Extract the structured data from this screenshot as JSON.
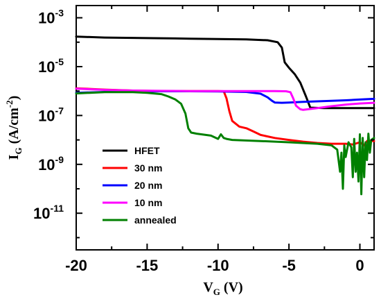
{
  "chart_data": {
    "type": "line",
    "title": "",
    "xlabel": {
      "main": "V",
      "sub": "G",
      "unit": " (V)"
    },
    "ylabel": {
      "main": "I",
      "sub": "G",
      "unit_open": " (A/cm",
      "unit_sup": "-2",
      "unit_close": ")"
    },
    "xlim": [
      -20,
      1
    ],
    "ylim_log10": [
      -12.5,
      -2.5
    ],
    "y_scale": "log",
    "x_ticks": [
      -20,
      -15,
      -10,
      -5,
      0
    ],
    "x_tick_labels": [
      "-20",
      "-15",
      "-10",
      "-5",
      "0"
    ],
    "y_ticks_exp": [
      -3,
      -5,
      -7,
      -9,
      -11
    ],
    "y_tick_base": "10",
    "y_tick_exps": [
      "-3",
      "-5",
      "-7",
      "-9",
      "-11"
    ],
    "legend_position": "lower-left",
    "series": [
      {
        "name": "HFET",
        "color": "#000000",
        "x": [
          -20,
          -18,
          -16,
          -14,
          -12,
          -10,
          -8,
          -6.5,
          -5.8,
          -5.5,
          -5.3,
          -5.0,
          -4.6,
          -4.2,
          -3.8,
          -3.5,
          -2.5,
          -1,
          0,
          1
        ],
        "y": [
          0.00017,
          0.000155,
          0.00015,
          0.000145,
          0.00014,
          0.000135,
          0.00013,
          0.00012,
          0.0001,
          6e-05,
          1.5e-05,
          9e-06,
          5e-06,
          2.2e-06,
          6e-07,
          2.1e-07,
          2e-07,
          2e-07,
          2e-07,
          2e-07
        ]
      },
      {
        "name": "30 nm",
        "color": "#ff0000",
        "x": [
          -20,
          -18,
          -16,
          -14,
          -12,
          -10,
          -9.6,
          -9.4,
          -9.2,
          -9.0,
          -8.5,
          -8.0,
          -7.5,
          -7,
          -6,
          -5,
          -4,
          -3,
          -2,
          -1,
          -0.5,
          0,
          0.3,
          0.5,
          1
        ],
        "y": [
          1.3e-06,
          1.15e-06,
          1.05e-06,
          1e-06,
          1e-06,
          1e-06,
          9.8e-07,
          5e-07,
          1.5e-07,
          6e-08,
          3.5e-08,
          3e-08,
          2.2e-08,
          1.6e-08,
          1.2e-08,
          1e-08,
          8.5e-09,
          7.5e-09,
          7e-09,
          7e-09,
          6.5e-09,
          8e-09,
          6e-09,
          9e-09,
          9e-09
        ]
      },
      {
        "name": "20 nm",
        "color": "#0000ff",
        "x": [
          -20,
          -18,
          -16,
          -14,
          -12,
          -10,
          -8,
          -7,
          -6.5,
          -6.2,
          -6.0,
          -5.5,
          -5,
          -4,
          -3,
          -2,
          -1,
          0,
          1
        ],
        "y": [
          8.5e-07,
          9.2e-07,
          9.6e-07,
          9.8e-07,
          9.8e-07,
          9.7e-07,
          9.2e-07,
          7.8e-07,
          5.5e-07,
          4e-07,
          3.4e-07,
          3.3e-07,
          3.4e-07,
          3.6e-07,
          3.8e-07,
          4e-07,
          4.2e-07,
          4.5e-07,
          4.8e-07
        ]
      },
      {
        "name": "10 nm",
        "color": "#ff00ff",
        "x": [
          -20,
          -18,
          -16,
          -14,
          -12,
          -10,
          -8,
          -6,
          -5.2,
          -4.9,
          -4.7,
          -4.5,
          -4.2,
          -4,
          -3,
          -2,
          -1,
          0,
          1
        ],
        "y": [
          1.25e-06,
          1.12e-06,
          1.05e-06,
          1.02e-06,
          1e-06,
          1e-06,
          1e-06,
          1e-06,
          9.8e-07,
          9e-07,
          5e-07,
          2.5e-07,
          1.8e-07,
          1.7e-07,
          2e-07,
          2.4e-07,
          2.8e-07,
          3.1e-07,
          3.3e-07
        ]
      },
      {
        "name": "annealed",
        "color": "#008000",
        "x": [
          -20,
          -18,
          -16,
          -15,
          -14,
          -13.5,
          -13,
          -12.6,
          -12.3,
          -12.1,
          -11.9,
          -11.5,
          -10.5,
          -10,
          -9.8,
          -9.6,
          -9.4,
          -9,
          -7,
          -5,
          -3,
          -2,
          -1.6,
          -1.4,
          -1.3,
          -1.2,
          -1.1,
          -1.0,
          -0.8,
          -0.6,
          -0.5,
          -0.4,
          -0.3,
          -0.2,
          -0.1,
          0.0,
          0.1,
          0.2,
          0.3,
          0.4,
          0.5,
          0.6,
          0.7,
          0.8,
          1
        ],
        "y": [
          8e-07,
          9e-07,
          9e-07,
          8.5e-07,
          7.5e-07,
          6e-07,
          4.5e-07,
          3e-07,
          1.2e-07,
          3e-08,
          2e-08,
          1.8e-08,
          1.5e-08,
          1.1e-08,
          1.7e-08,
          1.2e-08,
          1.1e-08,
          1e-08,
          9e-09,
          8e-09,
          7e-09,
          6e-09,
          4e-09,
          5e-10,
          3e-09,
          1e-10,
          6e-09,
          2e-09,
          8e-09,
          5e-09,
          3e-10,
          1.1e-08,
          5e-10,
          3e-09,
          2e-10,
          1.7e-08,
          6e-11,
          1.2e-08,
          3e-10,
          8e-09,
          1.5e-09,
          1.8e-08,
          3e-09,
          1e-08,
          1.2e-08
        ]
      }
    ]
  }
}
